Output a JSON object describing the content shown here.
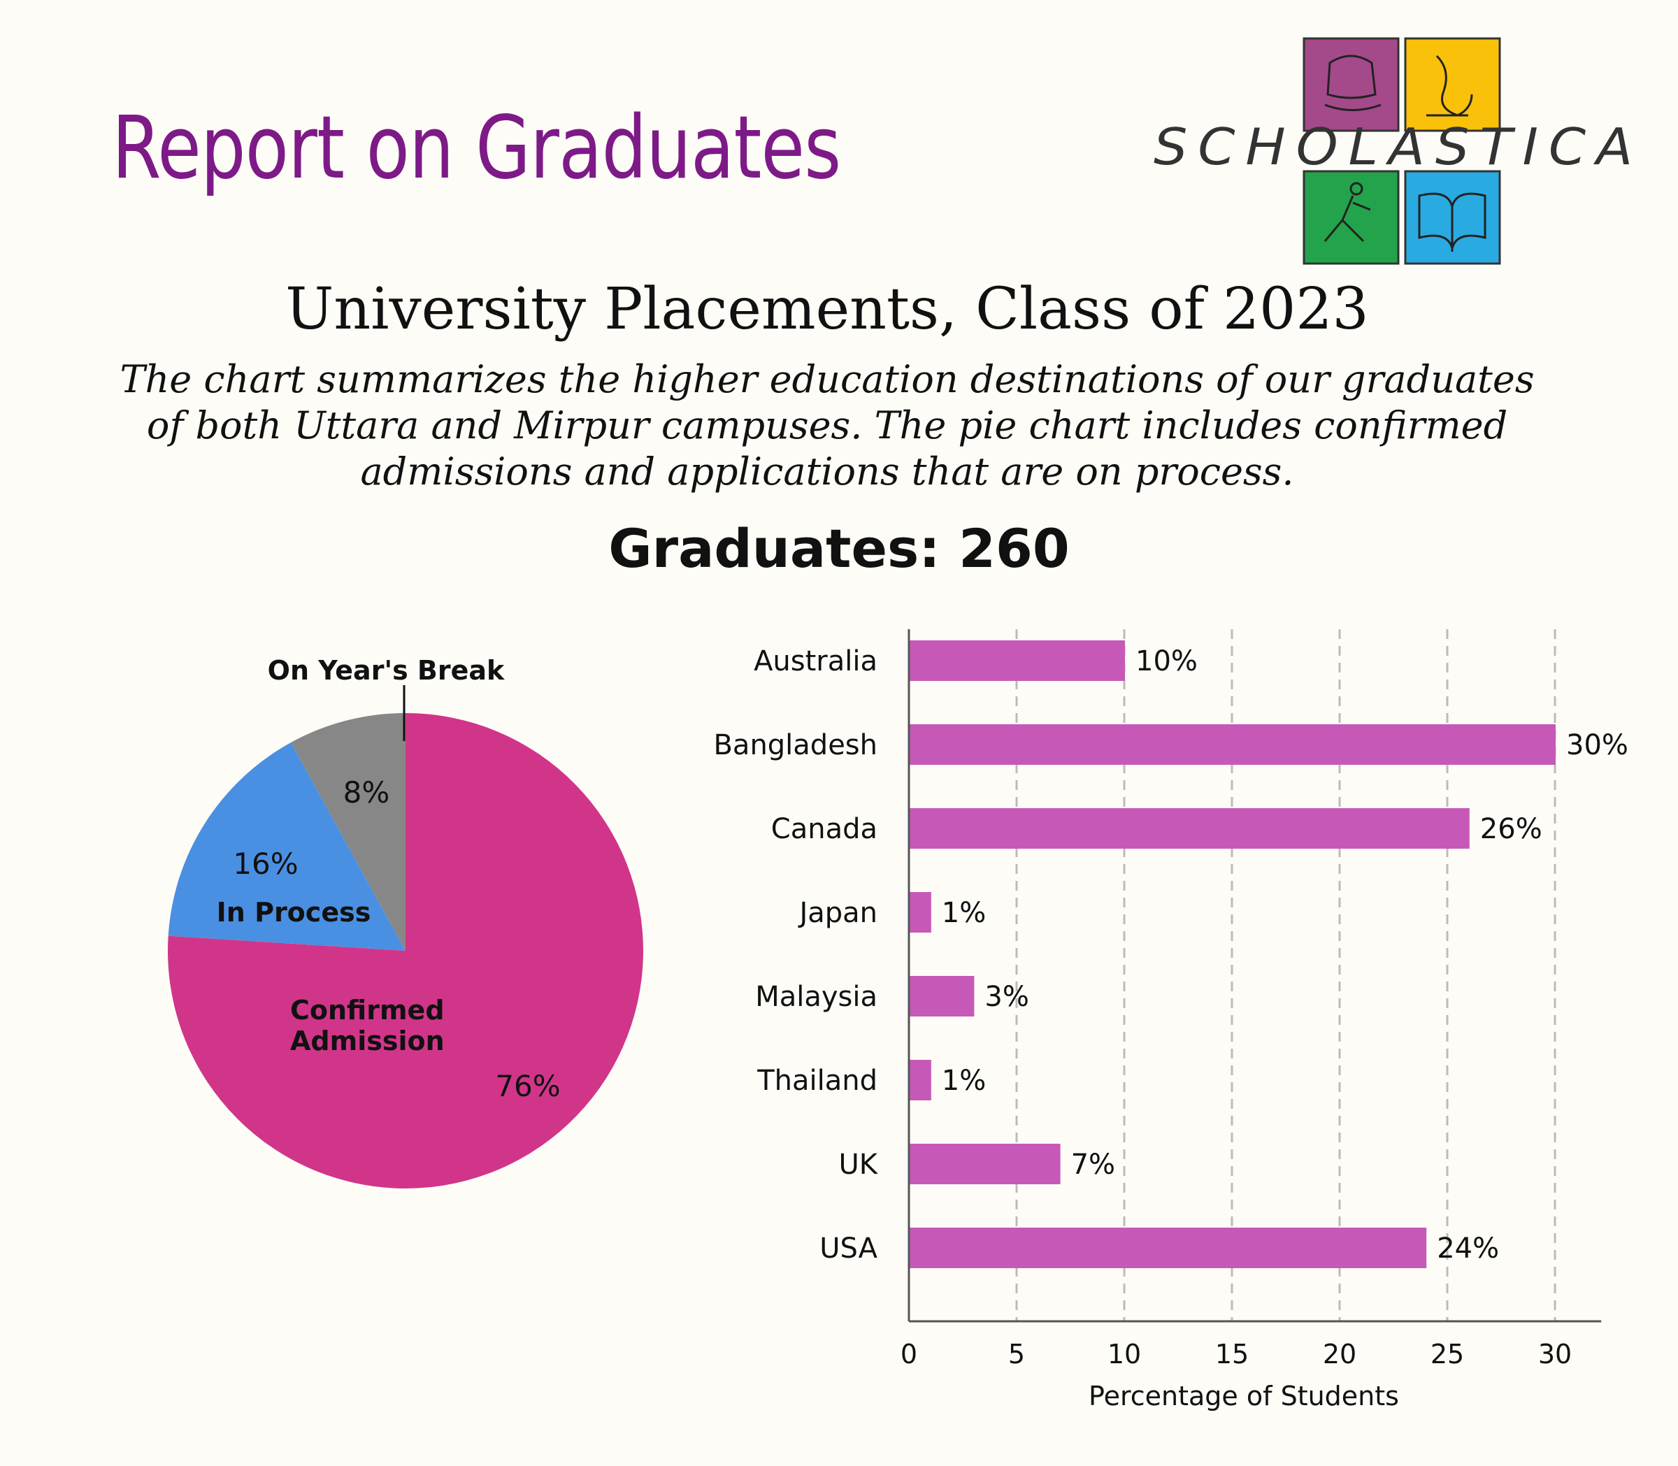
{
  "header": {
    "title": "Report on Graduates",
    "logo_text": "SCHOLASTICA"
  },
  "colors": {
    "title": "#7d1a87",
    "confirmed": "#d13589",
    "in_process": "#4a90e2",
    "break": "#878787",
    "bar": "#c659b7",
    "logo_purple": "#a44a8a",
    "logo_yellow": "#f9c10a",
    "logo_green": "#23a34b",
    "logo_blue": "#29abe2"
  },
  "chart_title": "University Placements, Class of 2023",
  "description": "The chart summarizes the higher education destinations of our graduates of both Uttara and Mirpur campuses. The pie chart includes confirmed admissions and applications that are on process.",
  "graduates_label": "Graduates: 260",
  "chart_data": [
    {
      "type": "pie",
      "slices": [
        {
          "name": "Confirmed Admission",
          "value": 76,
          "label": "76%",
          "color": "#d13589"
        },
        {
          "name": "In Process",
          "value": 16,
          "label": "16%",
          "color": "#4a90e2"
        },
        {
          "name": "On Year's Break",
          "value": 8,
          "label": "8%",
          "color": "#878787"
        }
      ]
    },
    {
      "type": "bar",
      "orientation": "horizontal",
      "categories": [
        "Australia",
        "Bangladesh",
        "Canada",
        "Japan",
        "Malaysia",
        "Thailand",
        "UK",
        "USA"
      ],
      "values": [
        10,
        30,
        26,
        1,
        3,
        1,
        7,
        24
      ],
      "value_labels": [
        "10%",
        "30%",
        "26%",
        "1%",
        "3%",
        "1%",
        "7%",
        "24%"
      ],
      "xlabel": "Percentage of Students",
      "xticks": [
        "0",
        "5",
        "10",
        "15",
        "20",
        "25",
        "30"
      ],
      "xlim": [
        0,
        31.5
      ],
      "grid": "vertical dashed"
    }
  ]
}
